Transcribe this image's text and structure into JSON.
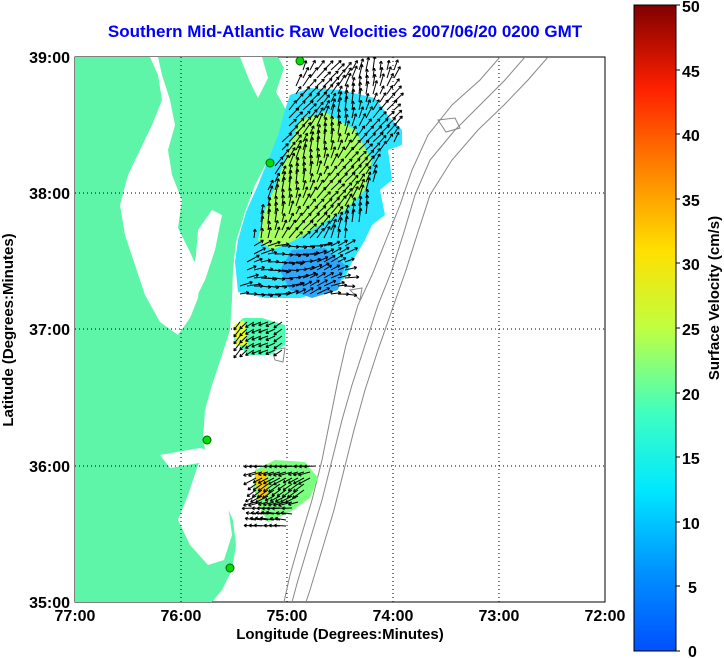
{
  "title": "Southern Mid-Atlantic Raw Velocities 2007/06/20 0200 GMT",
  "map": {
    "xlabel": "Longitude (Degrees:Minutes)",
    "ylabel": "Latitude (Degrees:Minutes)",
    "x_ticks": [
      "77:00",
      "76:00",
      "75:00",
      "74:00",
      "73:00",
      "72:00"
    ],
    "y_ticks": [
      "39:00",
      "38:00",
      "37:00",
      "36:00",
      "35:00"
    ],
    "lon_range": [
      -77,
      -72
    ],
    "lat_range": [
      35,
      39
    ],
    "land_color": "#5ef5a8",
    "water_color": "#ffffff",
    "grid": true
  },
  "colorbar": {
    "label": "Surface Velocity (cm/s)",
    "ticks": [
      "50",
      "45",
      "40",
      "35",
      "30",
      "25",
      "20",
      "15",
      "10",
      "5",
      "0"
    ],
    "range": [
      0,
      50
    ],
    "colormap": "jet"
  }
}
